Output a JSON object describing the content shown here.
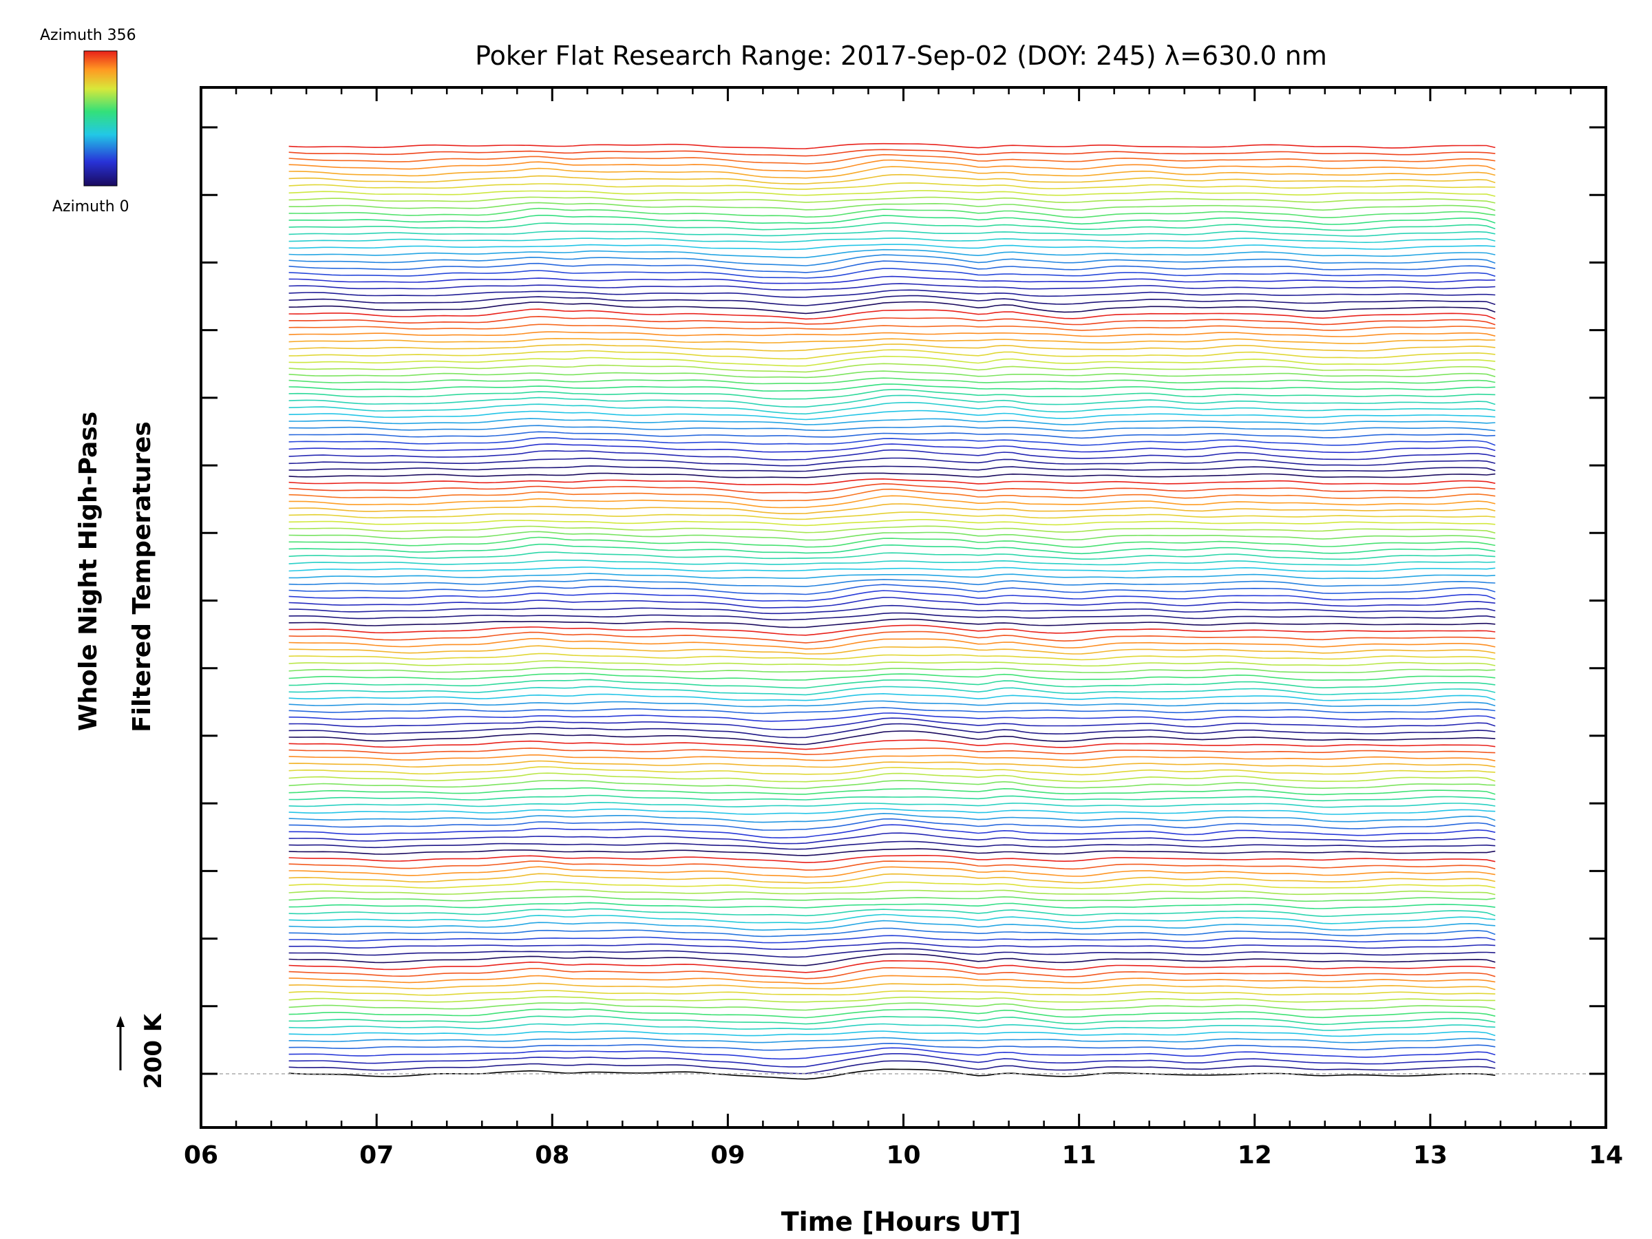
{
  "chart_data": {
    "type": "line",
    "title": "Poker Flat Research Range: 2017-Sep-02 (DOY: 245) λ=630.0 nm",
    "xlabel": "Time [Hours UT]",
    "ylabel_line1": "Whole Night High-Pass",
    "ylabel_line2": "Filtered Temperatures",
    "scale_label": "200 K",
    "xlim": [
      6,
      14
    ],
    "xticks": [
      "06",
      "07",
      "08",
      "09",
      "10",
      "11",
      "12",
      "13",
      "14"
    ],
    "y_major_ticks": 15,
    "colorbar": {
      "max_label": "Azimuth 356",
      "min_label": "Azimuth 0",
      "max_value": 356,
      "min_value": 0
    },
    "grid": false,
    "series_count": 139,
    "time_range": [
      6.5,
      13.37
    ],
    "profile": {
      "x": [
        6.5,
        6.7,
        7.0,
        7.2,
        7.4,
        7.6,
        7.8,
        7.9,
        8.0,
        8.1,
        8.2,
        8.4,
        8.5,
        8.6,
        8.8,
        9.0,
        9.2,
        9.3,
        9.45,
        9.6,
        9.8,
        9.9,
        10.0,
        10.1,
        10.3,
        10.45,
        10.5,
        10.6,
        10.7,
        10.9,
        11.0,
        11.2,
        11.4,
        11.6,
        11.7,
        11.8,
        11.9,
        12.0,
        12.1,
        12.2,
        12.3,
        12.4,
        12.6,
        12.8,
        13.0,
        13.2,
        13.3,
        13.37
      ],
      "y": [
        0,
        0,
        -10,
        -12,
        -6,
        -4,
        12,
        25,
        22,
        14,
        18,
        10,
        8,
        5,
        2,
        -6,
        -22,
        -26,
        -30,
        -15,
        18,
        32,
        30,
        25,
        10,
        -8,
        4,
        12,
        -2,
        -18,
        -20,
        -4,
        2,
        -8,
        -6,
        2,
        6,
        4,
        -2,
        -6,
        -14,
        -20,
        -16,
        -8,
        -4,
        5,
        4,
        -12
      ]
    }
  }
}
